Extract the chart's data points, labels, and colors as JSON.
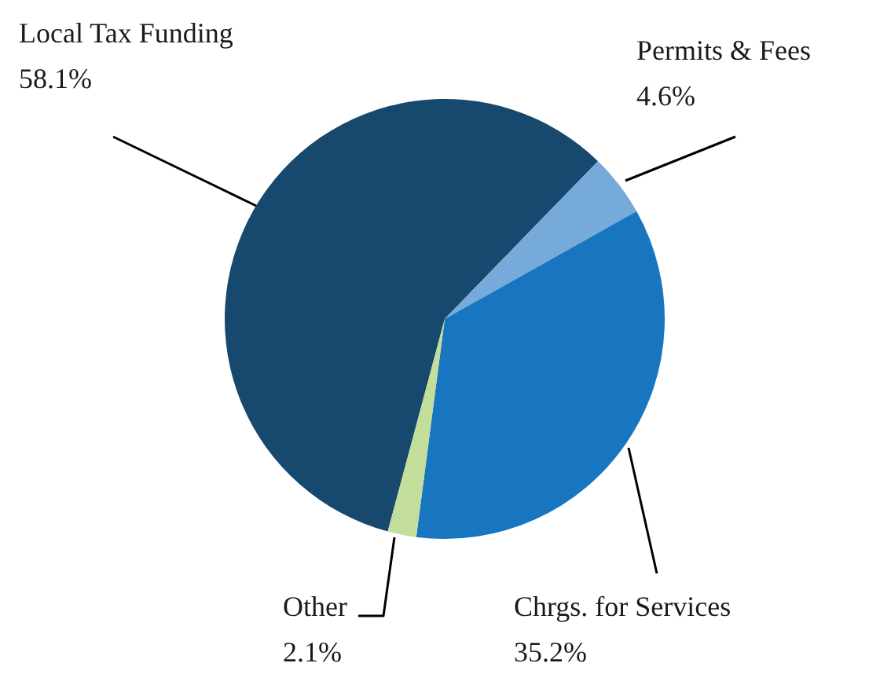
{
  "chart_data": {
    "type": "pie",
    "categories": [
      "Local Tax Funding",
      "Permits & Fees",
      "Chrgs. for Services",
      "Other"
    ],
    "values": [
      58.1,
      4.6,
      35.2,
      2.1
    ],
    "colors": [
      "#17496f",
      "#75aadb",
      "#1776bf",
      "#c3dd9a"
    ],
    "value_labels": [
      "58.1%",
      "4.6%",
      "35.2%",
      "2.1%"
    ],
    "legend": false
  }
}
